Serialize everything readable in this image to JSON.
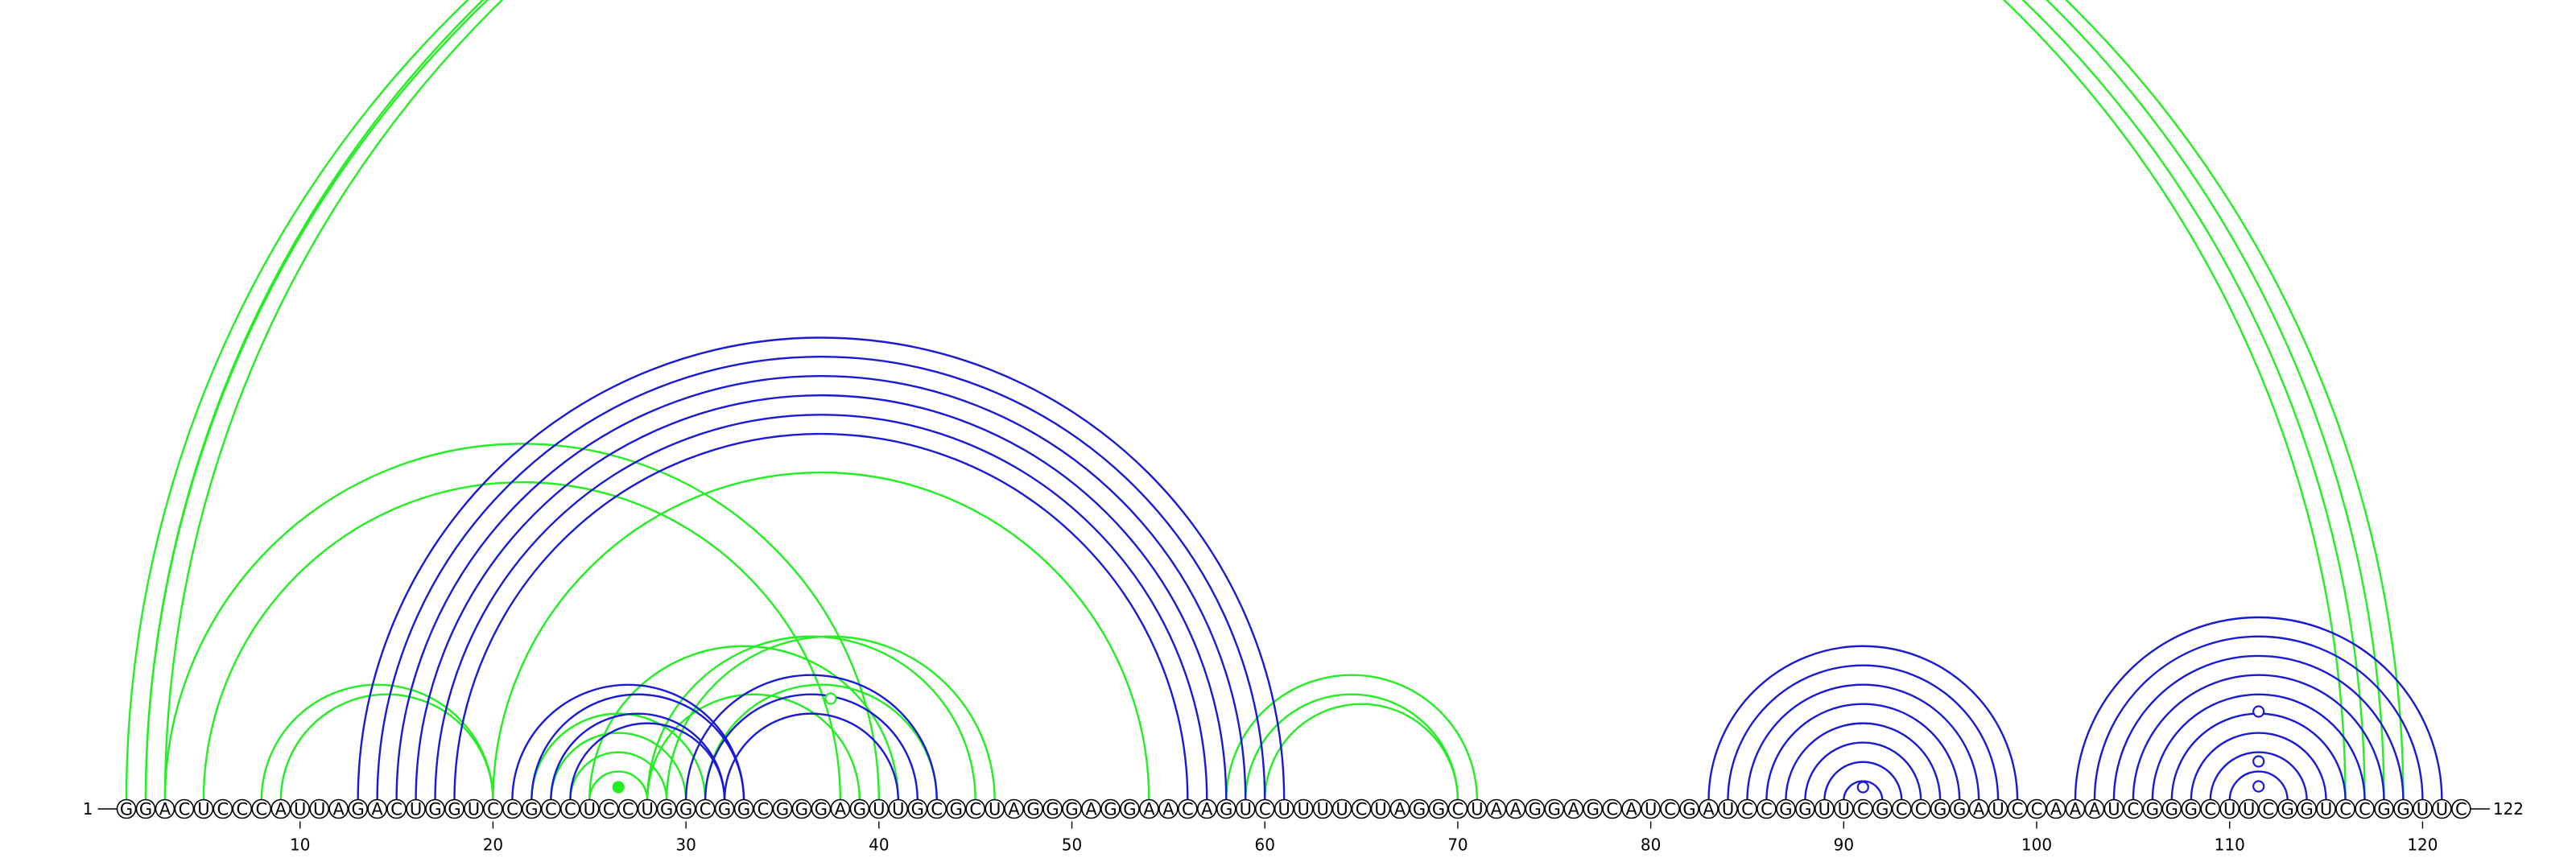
{
  "sequence": "GGACUCCCAUUAGACUGGUCCGCCUCCUGGCGGCGGGAGUUGCGCUAGGGAGGAACAGUCUUUUCUAGGCUAAGGAGCAUCGAUCCGGUUCGCCGGAUCCAAAUCGGGCUUCGGUCCGGUUC",
  "start_label": "1",
  "end_label": "122",
  "tick_positions": [
    10,
    20,
    30,
    40,
    50,
    60,
    70,
    80,
    90,
    100,
    110,
    120
  ],
  "colors": {
    "green": "#22ee22",
    "blue": "#1a1ad6"
  },
  "arcs": [
    {
      "i": 1,
      "j": 116,
      "color": "green"
    },
    {
      "i": 2,
      "j": 117,
      "color": "green"
    },
    {
      "i": 2,
      "j": 118,
      "color": "green"
    },
    {
      "i": 3,
      "j": 119,
      "color": "green"
    },
    {
      "i": 5,
      "j": 38,
      "color": "green"
    },
    {
      "i": 3,
      "j": 40,
      "color": "green"
    },
    {
      "i": 8,
      "j": 20,
      "color": "green"
    },
    {
      "i": 9,
      "j": 20,
      "color": "green"
    },
    {
      "i": 20,
      "j": 54,
      "color": "green"
    },
    {
      "i": 25,
      "j": 41,
      "color": "green"
    },
    {
      "i": 28,
      "j": 39,
      "color": "green"
    },
    {
      "i": 28,
      "j": 45,
      "color": "green"
    },
    {
      "i": 29,
      "j": 46,
      "color": "green"
    },
    {
      "i": 31,
      "j": 43,
      "color": "green"
    },
    {
      "i": 58,
      "j": 71,
      "color": "green"
    },
    {
      "i": 59,
      "j": 70,
      "color": "green"
    },
    {
      "i": 60,
      "j": 70,
      "color": "green"
    },
    {
      "i": 23,
      "j": 30,
      "color": "green"
    },
    {
      "i": 24,
      "j": 29,
      "color": "green"
    },
    {
      "i": 25,
      "j": 28,
      "color": "green"
    },
    {
      "i": 22,
      "j": 31,
      "color": "green"
    },
    {
      "i": 13,
      "j": 61,
      "color": "blue"
    },
    {
      "i": 14,
      "j": 60,
      "color": "blue"
    },
    {
      "i": 15,
      "j": 59,
      "color": "blue"
    },
    {
      "i": 16,
      "j": 58,
      "color": "blue"
    },
    {
      "i": 17,
      "j": 57,
      "color": "blue"
    },
    {
      "i": 18,
      "j": 56,
      "color": "blue"
    },
    {
      "i": 21,
      "j": 33,
      "color": "blue"
    },
    {
      "i": 22,
      "j": 33,
      "color": "blue"
    },
    {
      "i": 23,
      "j": 32,
      "color": "blue"
    },
    {
      "i": 24,
      "j": 32,
      "color": "blue"
    },
    {
      "i": 30,
      "j": 43,
      "color": "blue"
    },
    {
      "i": 31,
      "j": 42,
      "color": "blue"
    },
    {
      "i": 32,
      "j": 41,
      "color": "blue"
    },
    {
      "i": 83,
      "j": 99,
      "color": "blue"
    },
    {
      "i": 84,
      "j": 98,
      "color": "blue"
    },
    {
      "i": 85,
      "j": 97,
      "color": "blue"
    },
    {
      "i": 86,
      "j": 96,
      "color": "blue"
    },
    {
      "i": 87,
      "j": 95,
      "color": "blue"
    },
    {
      "i": 88,
      "j": 94,
      "color": "blue"
    },
    {
      "i": 89,
      "j": 93,
      "color": "blue"
    },
    {
      "i": 90,
      "j": 92,
      "color": "blue"
    },
    {
      "i": 102,
      "j": 121,
      "color": "blue"
    },
    {
      "i": 103,
      "j": 120,
      "color": "blue"
    },
    {
      "i": 104,
      "j": 119,
      "color": "blue"
    },
    {
      "i": 105,
      "j": 118,
      "color": "blue"
    },
    {
      "i": 106,
      "j": 117,
      "color": "blue"
    },
    {
      "i": 107,
      "j": 116,
      "color": "blue"
    },
    {
      "i": 108,
      "j": 115,
      "color": "blue"
    },
    {
      "i": 109,
      "j": 114,
      "color": "blue"
    },
    {
      "i": 110,
      "j": 113,
      "color": "blue"
    }
  ]
}
